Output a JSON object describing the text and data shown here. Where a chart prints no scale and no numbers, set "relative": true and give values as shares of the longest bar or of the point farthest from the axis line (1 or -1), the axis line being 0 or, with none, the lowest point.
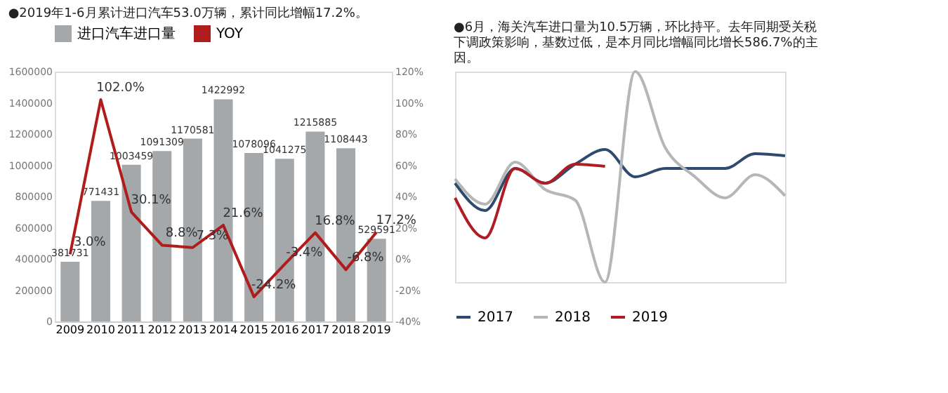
{
  "chart_data": [
    {
      "type": "bar",
      "title": "●2019年1-6月累计进口汽车53.0万辆，累计同比增幅17.2%。",
      "categories": [
        "2009",
        "2010",
        "2011",
        "2012",
        "2013",
        "2014",
        "2015",
        "2016",
        "2017",
        "2018",
        "2019"
      ],
      "series": [
        {
          "name": "进口汽车进口量",
          "type": "bar",
          "color": "#a5a8ab",
          "values": [
            381731,
            771431,
            1003459,
            1091309,
            1170581,
            1422992,
            1078096,
            1041275,
            1215885,
            1108443,
            529591
          ],
          "value_labels": [
            "381731",
            "771431",
            "1003459",
            "1091309",
            "1170581",
            "1422992",
            "1078096",
            "1041275",
            "1215885",
            "1108443",
            "529591"
          ]
        },
        {
          "name": "YOY",
          "type": "line",
          "axis": "y2",
          "color": "#b01c1c",
          "values": [
            3.0,
            102.0,
            30.1,
            8.8,
            7.3,
            21.6,
            -24.2,
            -3.4,
            16.8,
            -6.8,
            17.2
          ],
          "value_labels": [
            "3.0%",
            "102.0%",
            "30.1%",
            "8.8%",
            "7.3%",
            "21.6%",
            "-24.2%",
            "-3.4%",
            "16.8%",
            "-6.8%",
            "17.2%"
          ]
        }
      ],
      "ylim": [
        0,
        1600000
      ],
      "yticks": [
        0,
        200000,
        400000,
        600000,
        800000,
        1000000,
        1200000,
        1400000,
        1600000
      ],
      "y2lim": [
        -40,
        120
      ],
      "y2ticks": [
        {
          "value": -40,
          "label": "-40%"
        },
        {
          "value": -20,
          "label": "-20%"
        },
        {
          "value": 0,
          "label": "0%"
        },
        {
          "value": 20,
          "label": "20%"
        },
        {
          "value": 40,
          "label": "40%"
        },
        {
          "value": 60,
          "label": "60%"
        },
        {
          "value": 80,
          "label": "80%"
        },
        {
          "value": 100,
          "label": "100%"
        },
        {
          "value": 120,
          "label": "120%"
        }
      ],
      "legend": "top",
      "grid": false
    },
    {
      "type": "line",
      "title": "●6月，海关汽车进口量为10.5万辆，环比持平。去年同期受关税下调政策影响，基数过低，是本月同比增幅同比增长586.7%的主因。",
      "categories": [
        null,
        null,
        null,
        null,
        null,
        null,
        null,
        null,
        null,
        null,
        null,
        null
      ],
      "relative": true,
      "series": [
        {
          "name": "2017",
          "color": "#2e4a6e",
          "values": [
            0.47,
            0.34,
            0.54,
            0.47,
            0.56,
            0.63,
            0.5,
            0.54,
            0.54,
            0.54,
            0.61,
            0.6
          ]
        },
        {
          "name": "2018",
          "color": "#b4b6b8",
          "values": [
            0.49,
            0.37,
            0.57,
            0.44,
            0.39,
            0.0,
            1.0,
            0.64,
            0.5,
            0.4,
            0.51,
            0.41
          ]
        },
        {
          "name": "2019",
          "color": "#b01c24",
          "values": [
            0.4,
            0.21,
            0.54,
            0.47,
            0.56,
            0.55,
            null,
            null,
            null,
            null,
            null,
            null
          ]
        }
      ],
      "legend": "bottom",
      "grid": false
    }
  ]
}
